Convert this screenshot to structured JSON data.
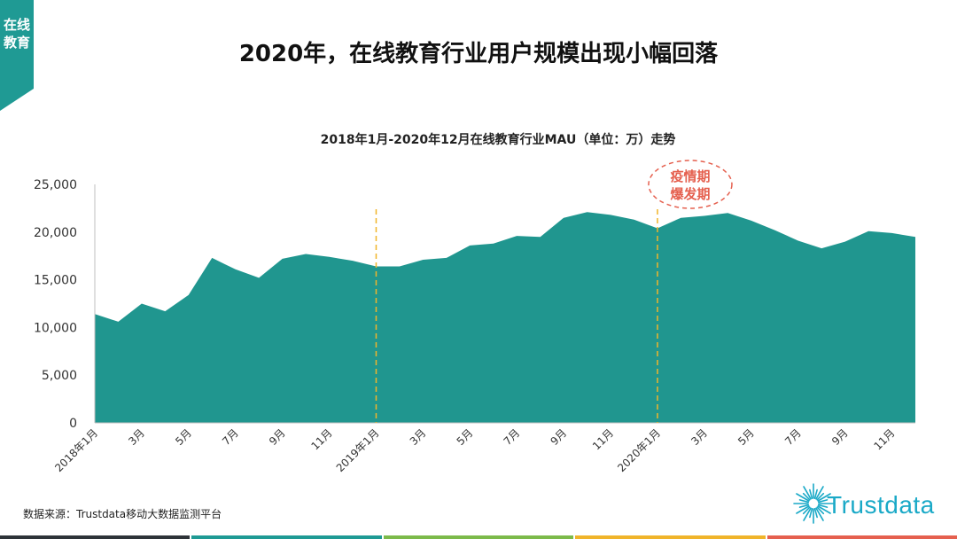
{
  "corner_tab": {
    "label": "在线教育"
  },
  "page_title": "2020年，在线教育行业用户规模出现小幅回落",
  "source_text": "数据来源：Trustdata移动大数据监测平台",
  "logo_text": "Trustdata",
  "colors": {
    "accent": "#1f9a94",
    "area_fill": "#20968f",
    "annotation": "#e5604f",
    "divider_line": "#f0b42a",
    "logo": "#1aa9c7",
    "bottom_bar": [
      "#2e3338",
      "#1f9a94",
      "#7cba4a",
      "#f0b42a",
      "#e5604f"
    ]
  },
  "chart_data": {
    "type": "area",
    "title": "2018年1月-2020年12月在线教育行业MAU（单位：万）走势",
    "xlabel": "",
    "ylabel": "",
    "ylim": [
      0,
      25000
    ],
    "yticks": [
      "0",
      "5,000",
      "10,000",
      "15,000",
      "20,000",
      "25,000"
    ],
    "ytick_values": [
      0,
      5000,
      10000,
      15000,
      20000,
      25000
    ],
    "grid": false,
    "legend": "none",
    "x_tick_labels": [
      "2018年1月",
      "3月",
      "5月",
      "7月",
      "9月",
      "11月",
      "2019年1月",
      "3月",
      "5月",
      "7月",
      "9月",
      "11月",
      "2020年1月",
      "3月",
      "5月",
      "7月",
      "9月",
      "11月"
    ],
    "x_tick_indices": [
      0,
      2,
      4,
      6,
      8,
      10,
      12,
      14,
      16,
      18,
      20,
      22,
      24,
      26,
      28,
      30,
      32,
      34
    ],
    "values": [
      11400,
      10600,
      12500,
      11700,
      13400,
      17300,
      16100,
      15200,
      17200,
      17700,
      17400,
      17000,
      16400,
      16400,
      17100,
      17300,
      18600,
      18800,
      19600,
      19500,
      21500,
      22100,
      21800,
      21300,
      20400,
      21500,
      21700,
      22000,
      21200,
      20200,
      19100,
      18300,
      19000,
      20100,
      19900,
      19500
    ],
    "annotations": [
      {
        "type": "vline",
        "x_index": 12
      },
      {
        "type": "vline",
        "x_index": 24
      },
      {
        "type": "callout",
        "x_index": 24,
        "text_lines": [
          "疫情期",
          "爆发期"
        ]
      }
    ]
  }
}
